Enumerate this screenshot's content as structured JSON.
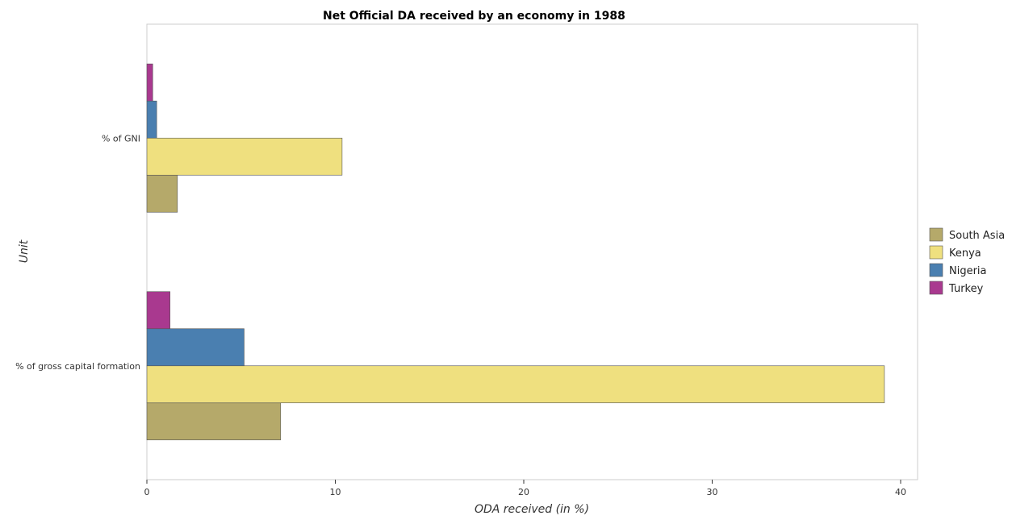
{
  "chart_data": {
    "type": "bar",
    "orientation": "horizontal",
    "title": "Net Official DA received by an economy in 1988",
    "xlabel": "ODA received (in %)",
    "ylabel": "Unit",
    "xlim": [
      0,
      40.9
    ],
    "xticks": [
      "0",
      "10",
      "20",
      "30",
      "40"
    ],
    "categories": [
      "% of GNI",
      "% of gross capital formation"
    ],
    "series": [
      {
        "name": "South Asia",
        "color": "#b5a96a",
        "values": [
          1.62,
          7.1
        ]
      },
      {
        "name": "Kenya",
        "color": "#efe07f",
        "values": [
          10.36,
          39.14
        ]
      },
      {
        "name": "Nigeria",
        "color": "#4a7fb0",
        "values": [
          0.52,
          5.16
        ]
      },
      {
        "name": "Turkey",
        "color": "#a9398f",
        "values": [
          0.31,
          1.23
        ]
      }
    ],
    "legend_position": "right",
    "grid": false
  }
}
